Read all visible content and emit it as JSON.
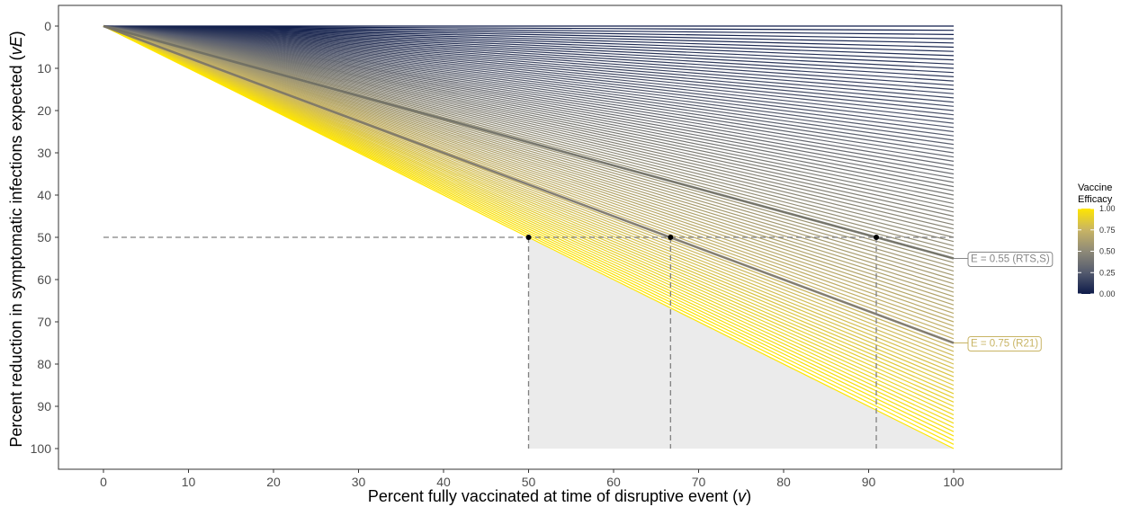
{
  "chart_data": {
    "type": "line",
    "x": [
      0,
      100
    ],
    "xlabel_parts": [
      "Percent fully vaccinated at time of disruptive event (",
      "v",
      ")"
    ],
    "ylabel_parts": [
      "Percent reduction in symptomatic infections expected (",
      "vE",
      ")"
    ],
    "xlim": [
      -5.5,
      112.5
    ],
    "ylim": [
      0,
      100
    ],
    "y_reversed": true,
    "x_ticks": [
      0,
      10,
      20,
      30,
      40,
      50,
      60,
      70,
      80,
      90,
      100
    ],
    "y_ticks": [
      0,
      10,
      20,
      30,
      40,
      50,
      60,
      70,
      80,
      90,
      100
    ],
    "x_tick_labels": [
      "0",
      "10",
      "20",
      "30",
      "40",
      "50",
      "60",
      "70",
      "80",
      "90",
      "100"
    ],
    "y_tick_labels": [
      "0",
      "10",
      "20",
      "30",
      "40",
      "50",
      "60",
      "70",
      "80",
      "90",
      "100"
    ],
    "grid": false,
    "efficacy_range": [
      0,
      1
    ],
    "efficacy_step": 0.01,
    "colorbar": {
      "title_lines": [
        "Vaccine",
        "Efficacy"
      ],
      "ticks": [
        0,
        0.25,
        0.5,
        0.75,
        1.0
      ],
      "tick_labels": [
        "0.00",
        "0.25",
        "0.50",
        "0.75",
        "1.00"
      ],
      "colors": [
        "#0d1b4a",
        "#545a6e",
        "#8e8a78",
        "#c8b464",
        "#ffe600"
      ]
    },
    "threshold_y": 50,
    "highlighted_series": [
      {
        "efficacy": 0.55,
        "label": "E = 0.55 (RTS,S)",
        "label_color": "#878787",
        "line_color": "#6b6b62"
      },
      {
        "efficacy": 0.75,
        "label": "E = 0.75 (R21)",
        "label_color": "#c8b464",
        "line_color": "#747067"
      }
    ],
    "points": [
      {
        "x": 50,
        "y": 50
      },
      {
        "x": 66.7,
        "y": 50
      },
      {
        "x": 90.9,
        "y": 50
      }
    ],
    "shaded_region": {
      "x_from": 50,
      "x_to": 100,
      "y_from": 50,
      "y_to": 100,
      "color": "#ebebeb"
    }
  }
}
